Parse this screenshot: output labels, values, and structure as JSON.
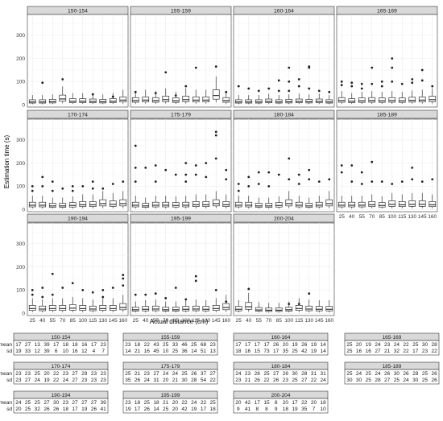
{
  "chart_data": {
    "type": "boxplot",
    "xlabel": "Actual distance (cm)",
    "ylabel": "Estimation time (s)",
    "x": [
      25,
      40,
      55,
      70,
      85,
      100,
      115,
      130,
      145,
      160
    ],
    "yticks": [
      0,
      100,
      200,
      300
    ],
    "ylim": [
      -10,
      390
    ],
    "facets": [
      "150-154",
      "155-159",
      "160-164",
      "165-169",
      "170-174",
      "175-179",
      "180-184",
      "185-189",
      "190-194",
      "195-199",
      "200-204"
    ],
    "medians": [
      [
        12,
        12,
        13,
        25,
        15,
        15,
        14,
        13,
        15,
        20
      ],
      [
        18,
        20,
        18,
        22,
        17,
        22,
        20,
        20,
        40,
        18
      ],
      [
        12,
        12,
        12,
        14,
        12,
        13,
        14,
        13,
        14,
        12
      ],
      [
        18,
        15,
        17,
        18,
        17,
        18,
        17,
        19,
        20,
        22
      ],
      [
        18,
        18,
        15,
        15,
        17,
        20,
        20,
        25,
        22,
        25
      ],
      [
        18,
        15,
        18,
        18,
        17,
        18,
        20,
        20,
        25,
        20
      ],
      [
        18,
        18,
        15,
        15,
        17,
        25,
        18,
        15,
        18,
        25
      ],
      [
        18,
        18,
        18,
        20,
        17,
        22,
        20,
        22,
        22,
        20
      ],
      [
        20,
        18,
        20,
        20,
        22,
        20,
        18,
        20,
        20,
        25
      ],
      [
        15,
        17,
        18,
        15,
        15,
        17,
        18,
        17,
        20,
        25
      ],
      [
        17,
        28,
        14,
        13,
        13,
        15,
        20,
        18,
        17,
        17
      ]
    ],
    "outliers": [
      [
        [],
        [
          95
        ],
        [],
        [
          110
        ],
        [],
        [],
        [
          45
        ],
        [],
        [
          35
        ],
        []
      ],
      [
        [
          55
        ],
        [],
        [
          50
        ],
        [
          140
        ],
        [
          40
        ],
        [
          80
        ],
        [
          160
        ],
        [],
        [
          165
        ],
        [
          55
        ]
      ],
      [
        [
          80
        ],
        [
          70
        ],
        [
          60
        ],
        [
          70
        ],
        [
          60,
          105
        ],
        [
          160,
          100,
          60
        ],
        [
          110,
          80
        ],
        [
          165,
          160,
          70
        ],
        [
          60
        ],
        [
          55
        ]
      ],
      [
        [
          100,
          85
        ],
        [
          95,
          80
        ],
        [
          90,
          70
        ],
        [
          160,
          90
        ],
        [
          100,
          80
        ],
        [
          200,
          160,
          100
        ],
        [
          90
        ],
        [
          110,
          95
        ],
        [
          150,
          105
        ],
        [
          80
        ]
      ],
      [
        [
          100,
          80
        ],
        [
          140,
          100
        ],
        [
          120,
          80
        ],
        [
          90
        ],
        [
          100,
          80
        ],
        [
          100
        ],
        [
          120,
          90
        ],
        [
          90
        ],
        [
          110
        ],
        [
          120
        ]
      ],
      [
        [
          275,
          180,
          120
        ],
        [
          180
        ],
        [
          190,
          120
        ],
        [
          170
        ],
        [
          150
        ],
        [
          200,
          150,
          120
        ],
        [
          190,
          150
        ],
        [
          200,
          140
        ],
        [
          335,
          320,
          220
        ],
        [
          170,
          130
        ]
      ],
      [
        [
          110,
          80
        ],
        [
          140,
          100
        ],
        [
          160,
          110
        ],
        [
          160,
          100
        ],
        [
          150
        ],
        [
          220,
          130
        ],
        [
          150,
          110
        ],
        [
          170,
          130
        ],
        [
          120
        ],
        [
          130
        ]
      ],
      [
        [
          190,
          160
        ],
        [
          190,
          120
        ],
        [
          160,
          110
        ],
        [
          205,
          120
        ],
        [
          120
        ],
        [
          110
        ],
        [
          120
        ],
        [
          180,
          130
        ],
        [
          120
        ],
        [
          130
        ]
      ],
      [
        [
          100,
          80
        ],
        [
          110,
          70
        ],
        [
          170,
          80
        ],
        [
          110
        ],
        [
          130
        ],
        [
          100
        ],
        [
          90
        ],
        [
          100,
          70
        ],
        [
          110
        ],
        [
          165,
          150,
          120
        ]
      ],
      [
        [
          80
        ],
        [
          80
        ],
        [
          85
        ],
        [
          65
        ],
        [
          110
        ],
        [
          60
        ],
        [
          160,
          140
        ],
        [],
        [
          100
        ],
        [
          50
        ]
      ],
      [
        [],
        [
          105
        ],
        [],
        [],
        [],
        [
          40
        ],
        [
          40
        ],
        [
          85
        ],
        [],
        []
      ]
    ],
    "table": [
      {
        "facet": "150-154",
        "mean": [
          17,
          27,
          13,
          39,
          17,
          18,
          18,
          16,
          17,
          23
        ],
        "sd": [
          19,
          33,
          12,
          39,
          6,
          10,
          16,
          12,
          4,
          7
        ]
      },
      {
        "facet": "155-159",
        "mean": [
          23,
          18,
          22,
          43,
          25,
          33,
          46,
          25,
          68,
          23
        ],
        "sd": [
          14,
          21,
          16,
          45,
          10,
          25,
          36,
          14,
          51,
          13
        ]
      },
      {
        "facet": "160-164",
        "mean": [
          17,
          17,
          17,
          17,
          26,
          20,
          19,
          26,
          19,
          14
        ],
        "sd": [
          18,
          16,
          15,
          73,
          17,
          35,
          25,
          42,
          19,
          14
        ]
      },
      {
        "facet": "165-169",
        "mean": [
          25,
          20,
          19,
          24,
          23,
          24,
          22,
          25,
          30,
          28
        ],
        "sd": [
          25,
          16,
          16,
          27,
          21,
          32,
          22,
          17,
          23,
          22
        ]
      },
      {
        "facet": "170-174",
        "mean": [
          23,
          23,
          25,
          20,
          22,
          23,
          27,
          29,
          23,
          23
        ],
        "sd": [
          23,
          27,
          24,
          19,
          22,
          24,
          27,
          23,
          23,
          23
        ]
      },
      {
        "facet": "175-179",
        "mean": [
          25,
          21,
          23,
          27,
          24,
          24,
          25,
          26,
          37,
          27
        ],
        "sd": [
          35,
          26,
          24,
          31,
          20,
          21,
          30,
          28,
          54,
          22
        ]
      },
      {
        "facet": "180-184",
        "mean": [
          24,
          23,
          28,
          25,
          27,
          26,
          30,
          28,
          31,
          31
        ],
        "sd": [
          23,
          21,
          26,
          22,
          26,
          23,
          25,
          27,
          22,
          24
        ]
      },
      {
        "facet": "185-189",
        "mean": [
          25,
          24,
          25,
          24,
          26,
          30,
          26,
          28,
          25,
          26
        ],
        "sd": [
          30,
          30,
          25,
          28,
          27,
          25,
          24,
          30,
          25,
          26
        ]
      },
      {
        "facet": "190-194",
        "mean": [
          24,
          25,
          25,
          27,
          30,
          23,
          27,
          27,
          27,
          39
        ],
        "sd": [
          20,
          25,
          32,
          26,
          26,
          18,
          17,
          19,
          26,
          41
        ]
      },
      {
        "facet": "195-199",
        "mean": [
          23,
          18,
          25,
          18,
          21,
          20,
          22,
          24,
          22,
          25
        ],
        "sd": [
          19,
          17,
          26,
          14,
          25,
          20,
          42,
          19,
          17,
          18
        ]
      },
      {
        "facet": "200-204",
        "mean": [
          20,
          42,
          17,
          15,
          8,
          20,
          17,
          22,
          20,
          18
        ],
        "sd": [
          9,
          41,
          8,
          8,
          9,
          18,
          19,
          35,
          7,
          10
        ]
      }
    ]
  }
}
